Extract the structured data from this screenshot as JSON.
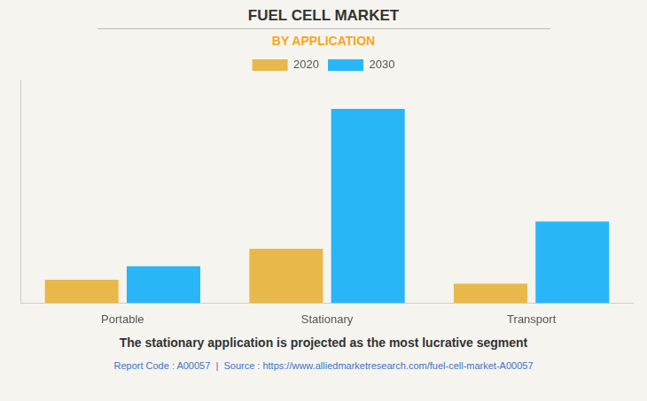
{
  "chart_data": {
    "type": "bar",
    "title": "FUEL CELL MARKET",
    "subtitle": "BY APPLICATION",
    "categories": [
      "Portable",
      "Stationary",
      "Transport"
    ],
    "series": [
      {
        "name": "2020",
        "color": "#E8B84B",
        "values": [
          1.2,
          2.8,
          1.0
        ]
      },
      {
        "name": "2030",
        "color": "#29B6F6",
        "values": [
          1.9,
          10.0,
          4.2
        ]
      }
    ],
    "ylim": [
      0,
      11.5
    ],
    "grid": false,
    "legend": "top",
    "tick_labels": "x",
    "annotations": [
      "The stationary application is projected as the most lucrative segment",
      "Report Code : A00057  |  Source : https://www.alliedmarketresearch.com/fuel-cell-market-A00057"
    ]
  }
}
